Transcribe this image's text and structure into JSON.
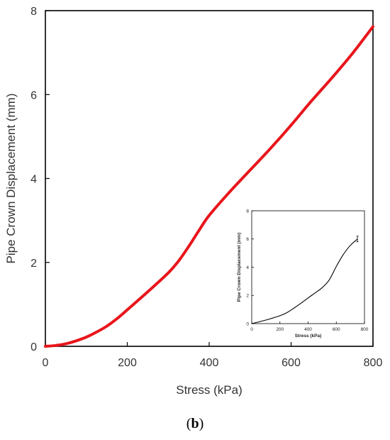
{
  "caption": {
    "open": "(",
    "letter": "b",
    "close": ")"
  },
  "chart_data": [
    {
      "type": "line",
      "title": "",
      "xlabel": "Stress (kPa)",
      "ylabel": "Pipe Crown Displacement (mm)",
      "xlim": [
        0,
        800
      ],
      "ylim": [
        0,
        8
      ],
      "xticks": [
        "0",
        "200",
        "400",
        "600",
        "800"
      ],
      "yticks": [
        "0",
        "2",
        "4",
        "6",
        "8"
      ],
      "grid": false,
      "legend": "none",
      "colors": {
        "line": "#e8151b",
        "axes": "#000000"
      },
      "series": [
        {
          "x": [
            0,
            25,
            50,
            75,
            100,
            125,
            150,
            175,
            200,
            250,
            300,
            325,
            350,
            375,
            400,
            450,
            500,
            550,
            600,
            650,
            700,
            750,
            800
          ],
          "y": [
            0,
            0.02,
            0.06,
            0.13,
            0.22,
            0.34,
            0.48,
            0.66,
            0.87,
            1.3,
            1.75,
            2.03,
            2.38,
            2.76,
            3.12,
            3.68,
            4.2,
            4.72,
            5.27,
            5.85,
            6.4,
            6.98,
            7.62
          ]
        }
      ]
    },
    {
      "type": "line",
      "title": "",
      "xlabel": "Stress (kPa)",
      "ylabel": "Pipe Crown Displacement (mm)",
      "xlim": [
        0,
        800
      ],
      "ylim": [
        0,
        8
      ],
      "xticks": [
        "0",
        "200",
        "400",
        "600",
        "800"
      ],
      "yticks": [
        "0",
        "2",
        "4",
        "6",
        "8"
      ],
      "grid": false,
      "legend": "none",
      "colors": {
        "line": "#000000",
        "axes": "#000000"
      },
      "series": [
        {
          "x": [
            0,
            50,
            100,
            150,
            200,
            250,
            300,
            350,
            400,
            450,
            500,
            550,
            600,
            650,
            700,
            750
          ],
          "y": [
            0,
            0.12,
            0.25,
            0.4,
            0.56,
            0.78,
            1.1,
            1.45,
            1.82,
            2.18,
            2.55,
            3.1,
            4.05,
            4.9,
            5.55,
            6.0
          ],
          "error_bar_at_end": 0.2
        }
      ]
    }
  ]
}
